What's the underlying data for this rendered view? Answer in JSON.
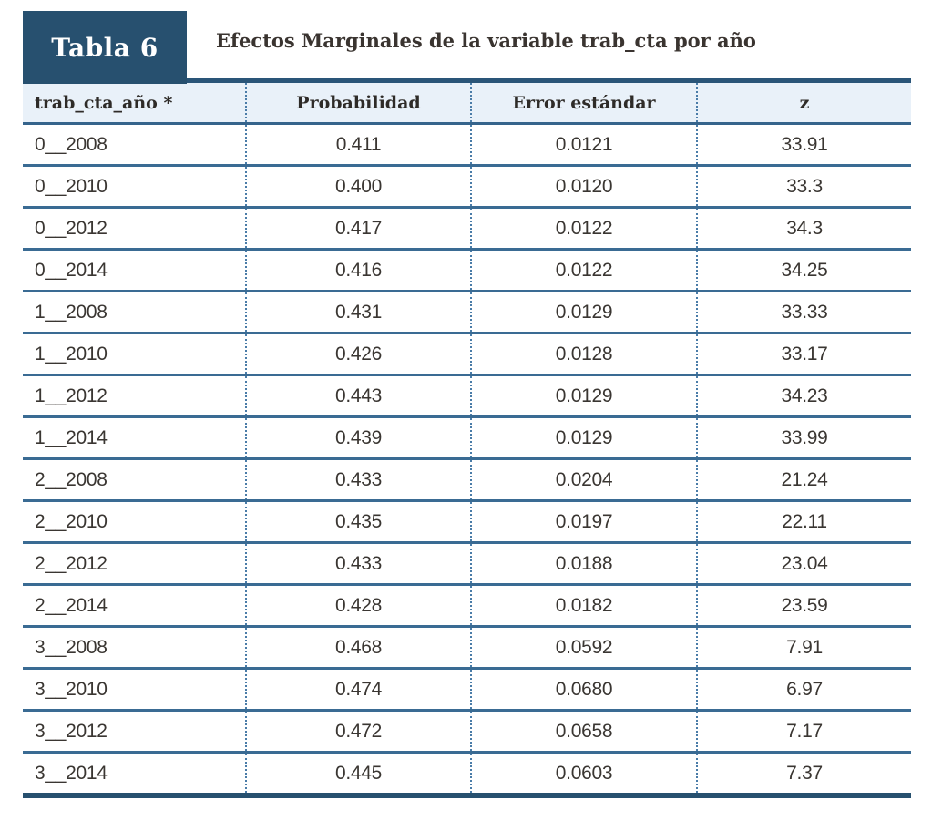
{
  "header": {
    "label": "Tabla 6",
    "title": "Efectos Marginales de la variable trab_cta por año"
  },
  "table": {
    "columns": [
      "trab_cta_año *",
      "Probabilidad",
      "Error estándar",
      "z"
    ],
    "rows": [
      [
        "0__2008",
        "0.411",
        "0.0121",
        "33.91"
      ],
      [
        "0__2010",
        "0.400",
        "0.0120",
        "33.3"
      ],
      [
        "0__2012",
        "0.417",
        "0.0122",
        "34.3"
      ],
      [
        "0__2014",
        "0.416",
        "0.0122",
        "34.25"
      ],
      [
        "1__2008",
        "0.431",
        "0.0129",
        "33.33"
      ],
      [
        "1__2010",
        "0.426",
        "0.0128",
        "33.17"
      ],
      [
        "1__2012",
        "0.443",
        "0.0129",
        "34.23"
      ],
      [
        "1__2014",
        "0.439",
        "0.0129",
        "33.99"
      ],
      [
        "2__2008",
        "0.433",
        "0.0204",
        "21.24"
      ],
      [
        "2__2010",
        "0.435",
        "0.0197",
        "22.11"
      ],
      [
        "2__2012",
        "0.433",
        "0.0188",
        "23.04"
      ],
      [
        "2__2014",
        "0.428",
        "0.0182",
        "23.59"
      ],
      [
        "3__2008",
        "0.468",
        "0.0592",
        "7.91"
      ],
      [
        "3__2010",
        "0.474",
        "0.0680",
        "6.97"
      ],
      [
        "3__2012",
        "0.472",
        "0.0658",
        "7.17"
      ],
      [
        "3__2014",
        "0.445",
        "0.0603",
        "7.37"
      ]
    ]
  },
  "colors": {
    "accent_dark_blue": "#27506F",
    "top_border_blue": "#2A5578",
    "row_separator_blue": "#3A6B93",
    "dotted_separator_blue": "#4A7CA8",
    "header_row_bg": "#E9F1F9",
    "badge_text": "#FFFFFF",
    "title_text": "#3A3430",
    "data_text": "#3A3632"
  }
}
